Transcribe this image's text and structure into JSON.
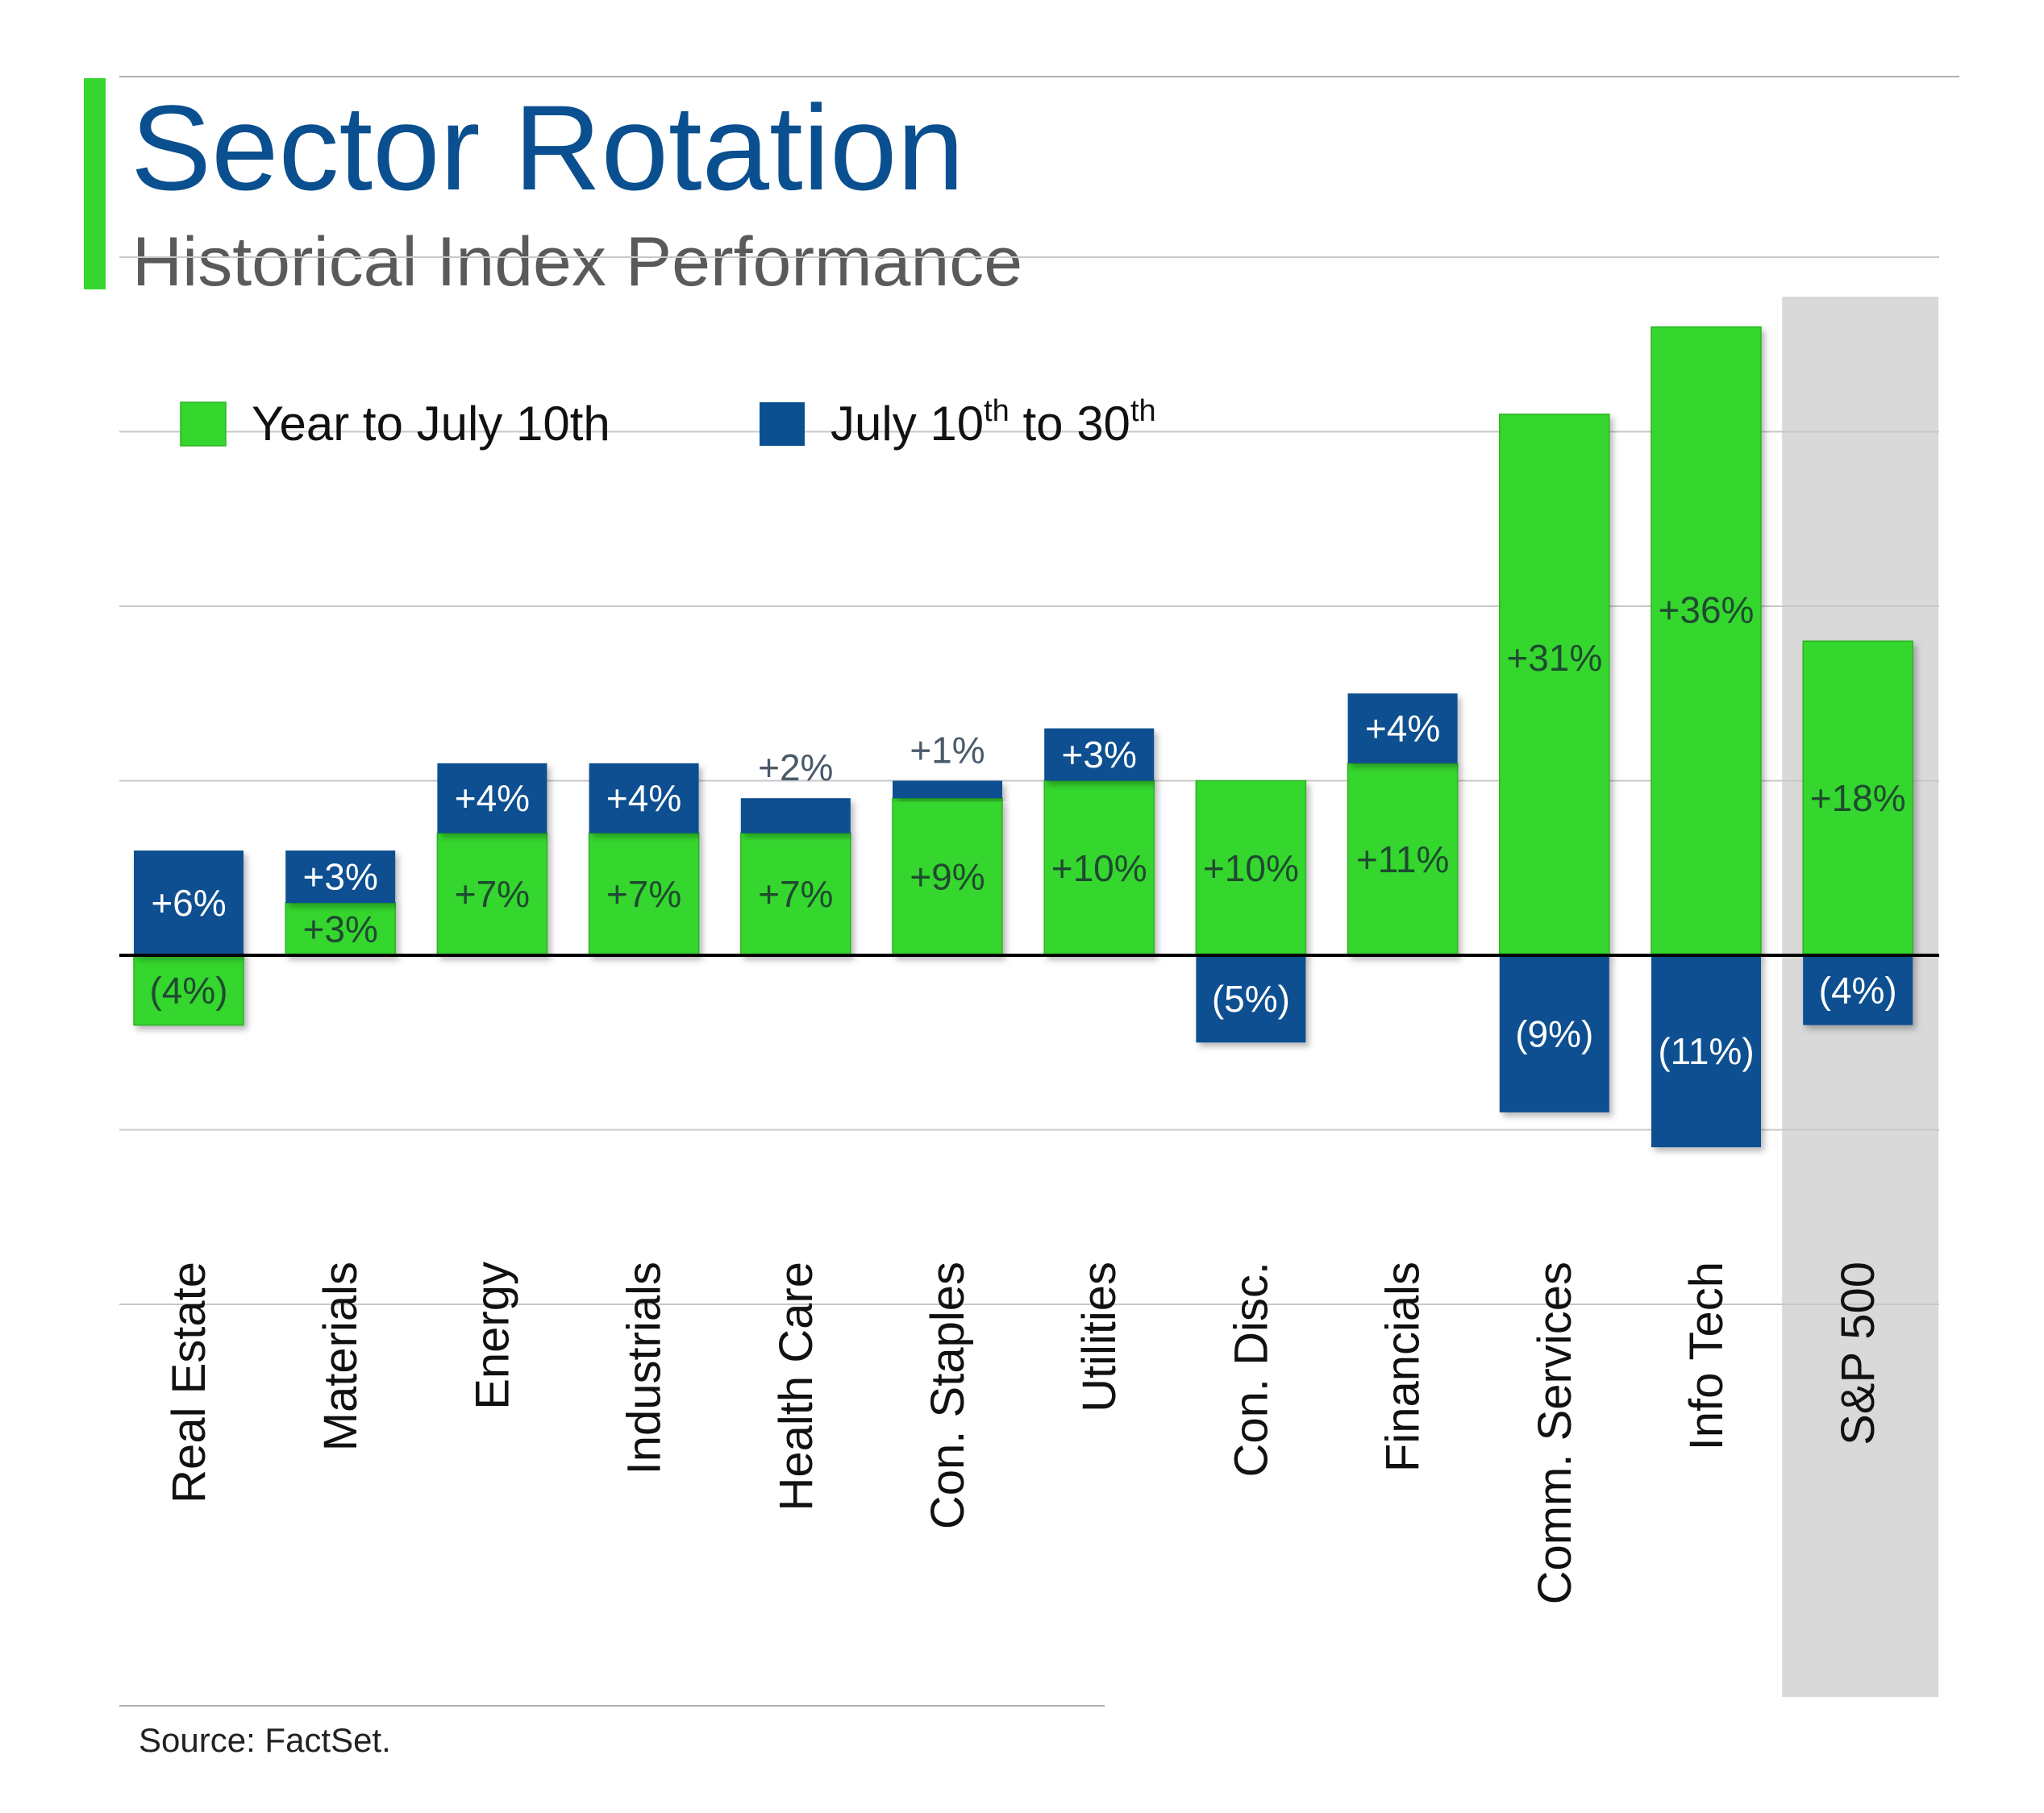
{
  "header": {
    "title": "Sector Rotation",
    "subtitle": "Historical Index Performance"
  },
  "footer": {
    "source": "Source: FactSet."
  },
  "colors": {
    "accent_green": "#35d62d",
    "year_series": "#35d62d",
    "july_series": "#0a5090",
    "title_blue": "#0a4f8f",
    "highlight_band": "#d9d9d9",
    "grid": "#c8c8c8"
  },
  "chart_data": {
    "type": "bar",
    "stacked": true,
    "title": "Sector Rotation",
    "subtitle": "Historical Index Performance",
    "categories": [
      "Real Estate",
      "Materials",
      "Energy",
      "Industrials",
      "Health Care",
      "Con. Staples",
      "Utilities",
      "Con. Disc.",
      "Financials",
      "Comm. Services",
      "Info Tech",
      "S&P 500"
    ],
    "series": [
      {
        "name": "Year to July 10th",
        "color": "#35d62d",
        "values": [
          -4,
          3,
          7,
          7,
          7,
          9,
          10,
          10,
          11,
          31,
          36,
          18
        ],
        "labels": [
          "(4%)",
          "+3%",
          "+7%",
          "+7%",
          "+7%",
          "+9%",
          "+10%",
          "+10%",
          "+11%",
          "+31%",
          "+36%",
          "+18%"
        ]
      },
      {
        "name": "July 10th to 30th",
        "color": "#0a5090",
        "values": [
          6,
          3,
          4,
          4,
          2,
          1,
          3,
          -5,
          4,
          -9,
          -11,
          -4
        ],
        "labels": [
          "+6%",
          "+3%",
          "+4%",
          "+4%",
          "+2%",
          "+1%",
          "+3%",
          "(5%)",
          "+4%",
          "(9%)",
          "(11%)",
          "(4%)"
        ]
      }
    ],
    "highlighted_category": "S&P 500",
    "grid": true,
    "legend_position": "top-left",
    "legend": [
      {
        "text": "Year to July 10th",
        "sup": "",
        "tail": ""
      },
      {
        "text": "July 10",
        "sup": "th",
        "mid": " to 30",
        "sup2": "th"
      }
    ]
  }
}
